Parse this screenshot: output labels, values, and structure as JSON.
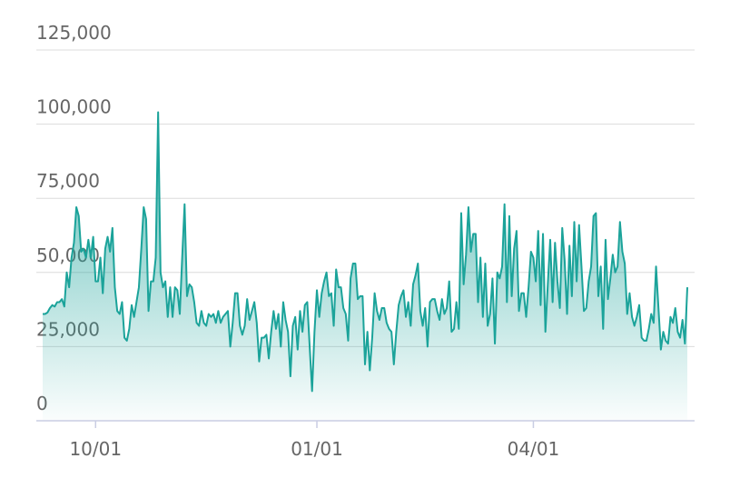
{
  "chart_data": {
    "type": "area",
    "color": "#1ba39a",
    "grid": true,
    "ylim": [
      0,
      125000
    ],
    "yticks": [
      0,
      {
        "value": 25000,
        "label": "25,000"
      },
      {
        "value": 50000,
        "label": "50,000"
      },
      {
        "value": 75000,
        "label": "75,000"
      },
      {
        "value": 100000,
        "label": "100,000"
      },
      {
        "value": 125000,
        "label": "125,000"
      }
    ],
    "xticks": [
      "10/01",
      "01/01",
      "04/01"
    ],
    "x": [
      "09/09",
      "09/10",
      "09/11",
      "09/12",
      "09/13",
      "09/14",
      "09/15",
      "09/16",
      "09/17",
      "09/18",
      "09/19",
      "09/20",
      "09/21",
      "09/22",
      "09/23",
      "09/24",
      "09/25",
      "09/26",
      "09/27",
      "09/28",
      "09/29",
      "09/30",
      "10/01",
      "10/02",
      "10/03",
      "10/04",
      "10/05",
      "10/06",
      "10/07",
      "10/08",
      "10/09",
      "10/10",
      "10/11",
      "10/12",
      "10/13",
      "10/14",
      "10/15",
      "10/16",
      "10/17",
      "10/18",
      "10/19",
      "10/20",
      "10/21",
      "10/22",
      "10/23",
      "10/24",
      "10/25",
      "10/26",
      "10/27",
      "10/28",
      "10/29",
      "10/30",
      "10/31",
      "11/01",
      "11/02",
      "11/03",
      "11/04",
      "11/05",
      "11/06",
      "11/07",
      "11/08",
      "11/09",
      "11/10",
      "11/11",
      "11/12",
      "11/13",
      "11/14",
      "11/15",
      "11/16",
      "11/17",
      "11/18",
      "11/19",
      "11/20",
      "11/21",
      "11/22",
      "11/23",
      "11/24",
      "11/25",
      "11/26",
      "11/27",
      "11/28",
      "11/29",
      "11/30",
      "12/01",
      "12/02",
      "12/03",
      "12/04",
      "12/05",
      "12/06",
      "12/07",
      "12/08",
      "12/09",
      "12/10",
      "12/11",
      "12/12",
      "12/13",
      "12/14",
      "12/15",
      "12/16",
      "12/17",
      "12/18",
      "12/19",
      "12/20",
      "12/21",
      "12/22",
      "12/23",
      "12/24",
      "12/25",
      "12/26",
      "12/27",
      "12/28",
      "12/29",
      "12/30",
      "12/31",
      "01/01",
      "01/02",
      "01/03",
      "01/04",
      "01/05",
      "01/06",
      "01/07",
      "01/08",
      "01/09",
      "01/10",
      "01/11",
      "01/12",
      "01/13",
      "01/14",
      "01/15",
      "01/16",
      "01/17",
      "01/18",
      "01/19",
      "01/20",
      "01/21",
      "01/22",
      "01/23",
      "01/24",
      "01/25",
      "01/26",
      "01/27",
      "01/28",
      "01/29",
      "01/30",
      "01/31",
      "02/01",
      "02/02",
      "02/03",
      "02/04",
      "02/05",
      "02/06",
      "02/07",
      "02/08",
      "02/09",
      "02/10",
      "02/11",
      "02/12",
      "02/13",
      "02/14",
      "02/15",
      "02/16",
      "02/17",
      "02/18",
      "02/19",
      "02/20",
      "02/21",
      "02/22",
      "02/23",
      "02/24",
      "02/25",
      "02/26",
      "02/27",
      "02/28",
      "03/01",
      "03/02",
      "03/03",
      "03/04",
      "03/05",
      "03/06",
      "03/07",
      "03/08",
      "03/09",
      "03/10",
      "03/11",
      "03/12",
      "03/13",
      "03/14",
      "03/15",
      "03/16",
      "03/17",
      "03/18",
      "03/19",
      "03/20",
      "03/21",
      "03/22",
      "03/23",
      "03/24",
      "03/25",
      "03/26",
      "03/27",
      "03/28",
      "03/29",
      "03/30",
      "03/31",
      "04/01",
      "04/02",
      "04/03",
      "04/04",
      "04/05",
      "04/06",
      "04/07",
      "04/08",
      "04/09",
      "04/10",
      "04/11",
      "04/12",
      "04/13",
      "04/14",
      "04/15",
      "04/16",
      "04/17",
      "04/18",
      "04/19",
      "04/20",
      "04/21",
      "04/22",
      "04/23",
      "04/24",
      "04/25",
      "04/26",
      "04/27",
      "04/28",
      "04/29",
      "04/30",
      "05/01",
      "05/02",
      "05/03",
      "05/04",
      "05/05",
      "05/06",
      "05/07",
      "05/08",
      "05/09",
      "05/10",
      "05/11",
      "05/12",
      "05/13",
      "05/14",
      "05/15",
      "05/16",
      "05/17",
      "05/18",
      "05/19",
      "05/20",
      "05/21",
      "05/22",
      "05/23",
      "05/24",
      "05/25",
      "05/26",
      "05/27",
      "05/28",
      "05/29",
      "05/30",
      "05/31",
      "06/01",
      "06/02",
      "06/03",
      "06/04"
    ],
    "values": [
      36000,
      36000,
      36500,
      38000,
      39000,
      38500,
      40000,
      40000,
      41000,
      38500,
      50000,
      45000,
      55000,
      60000,
      72000,
      69000,
      57000,
      58000,
      55000,
      61000,
      55000,
      62000,
      47000,
      47000,
      55000,
      43000,
      58000,
      62000,
      57000,
      65000,
      45000,
      37000,
      36000,
      40000,
      28000,
      27000,
      31000,
      39000,
      35000,
      40000,
      45000,
      58000,
      72000,
      68000,
      37000,
      47000,
      47000,
      55000,
      104000,
      50000,
      45000,
      47000,
      35000,
      45000,
      35000,
      45000,
      44000,
      36000,
      55000,
      73000,
      42000,
      46000,
      45000,
      40000,
      33000,
      32000,
      37000,
      33000,
      32000,
      36000,
      35000,
      36000,
      33000,
      37000,
      33000,
      35000,
      36000,
      37000,
      25000,
      33000,
      43000,
      43000,
      32000,
      29000,
      32000,
      41000,
      34000,
      37000,
      40000,
      33000,
      20000,
      28000,
      28000,
      29000,
      21000,
      30000,
      37000,
      31000,
      36000,
      25000,
      40000,
      34000,
      30000,
      15000,
      32000,
      35000,
      24000,
      37000,
      30000,
      39000,
      40000,
      25000,
      10000,
      30000,
      44000,
      35000,
      43000,
      47000,
      50000,
      42000,
      43000,
      32000,
      51000,
      45000,
      45000,
      38000,
      36000,
      27000,
      48000,
      53000,
      53000,
      41000,
      42000,
      42000,
      19000,
      30000,
      17000,
      28000,
      43000,
      37000,
      34000,
      38000,
      38000,
      33000,
      31000,
      30000,
      19000,
      30000,
      39000,
      42000,
      44000,
      35000,
      40000,
      32000,
      46000,
      49000,
      53000,
      37000,
      32000,
      38000,
      25000,
      40000,
      41000,
      41000,
      37000,
      34000,
      41000,
      36000,
      38000,
      47000,
      30000,
      31000,
      40000,
      31000,
      70000,
      46000,
      56000,
      72000,
      57000,
      63000,
      63000,
      40000,
      55000,
      35000,
      53000,
      32000,
      36000,
      48000,
      26000,
      50000,
      48000,
      52000,
      73000,
      40000,
      69000,
      42000,
      58000,
      64000,
      37000,
      43000,
      43000,
      35000,
      45000,
      57000,
      55000,
      47000,
      64000,
      39000,
      63000,
      30000,
      46000,
      61000,
      40000,
      60000,
      47000,
      38000,
      65000,
      54000,
      36000,
      59000,
      42000,
      67000,
      47000,
      66000,
      52000,
      37000,
      38000,
      47000,
      52000,
      69000,
      70000,
      42000,
      52000,
      31000,
      61000,
      41000,
      48000,
      56000,
      50000,
      52000,
      67000,
      57000,
      53000,
      36000,
      43000,
      35000,
      32000,
      35000,
      39000,
      28000,
      27000,
      27000,
      31000,
      36000,
      33000,
      52000,
      38000,
      24000,
      30000,
      27000,
      26000,
      35000,
      33000,
      38000,
      30000,
      28000,
      34000,
      26000,
      45000
    ]
  }
}
